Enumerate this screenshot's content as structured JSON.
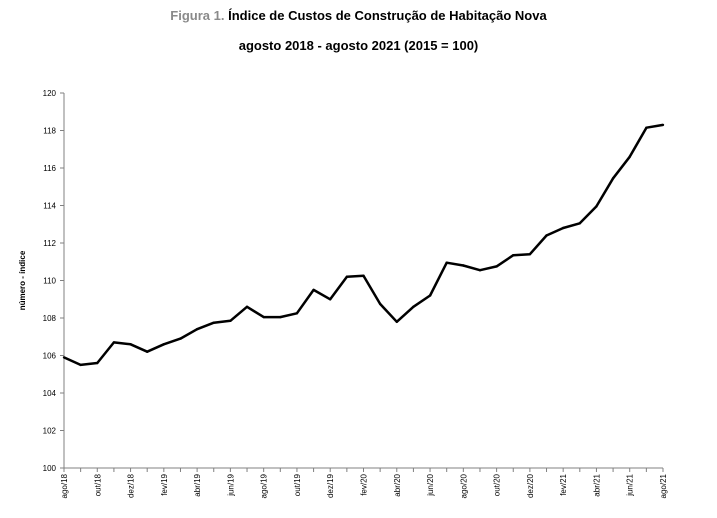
{
  "figure": {
    "label": "Figura 1.",
    "title": "Índice de Custos de Construção de Habitação Nova",
    "subtitle": "agosto 2018 - agosto 2021 (2015 = 100)"
  },
  "colors": {
    "line": "#000000",
    "label_gray": "#8a8a8a"
  },
  "chart_data": {
    "type": "line",
    "title": "Índice de Custos de Construção de Habitação Nova",
    "subtitle": "agosto 2018 - agosto 2021 (2015 = 100)",
    "xlabel": "",
    "ylabel": "número - índice",
    "ylim": [
      100,
      120
    ],
    "yticks": [
      100,
      102,
      104,
      106,
      108,
      110,
      112,
      114,
      116,
      118,
      120
    ],
    "grid": false,
    "legend": "none",
    "x": [
      "ago/18",
      "set/18",
      "out/18",
      "nov/18",
      "dez/18",
      "jan/19",
      "fev/19",
      "mar/19",
      "abr/19",
      "mai/19",
      "jun/19",
      "jul/19",
      "ago/19",
      "set/19",
      "out/19",
      "nov/19",
      "dez/19",
      "jan/20",
      "fev/20",
      "mar/20",
      "abr/20",
      "mai/20",
      "jun/20",
      "jul/20",
      "ago/20",
      "set/20",
      "out/20",
      "nov/20",
      "dez/20",
      "jan/21",
      "fev/21",
      "mar/21",
      "abr/21",
      "mai/21",
      "jun/21",
      "jul/21",
      "ago/21"
    ],
    "xtick_labels": [
      "ago/18",
      "out/18",
      "dez/18",
      "fev/19",
      "abr/19",
      "jun/19",
      "ago/19",
      "out/19",
      "dez/19",
      "fev/20",
      "abr/20",
      "jun/20",
      "ago/20",
      "out/20",
      "dez/20",
      "fev/21",
      "abr/21",
      "jun/21",
      "ago/21"
    ],
    "series": [
      {
        "values": [
          105.9,
          105.5,
          105.6,
          106.7,
          106.6,
          106.2,
          106.6,
          106.9,
          107.4,
          107.75,
          107.85,
          108.6,
          108.05,
          108.05,
          108.25,
          109.5,
          109.0,
          110.2,
          110.25,
          108.75,
          107.8,
          108.6,
          109.2,
          110.95,
          110.8,
          110.55,
          110.75,
          111.35,
          111.4,
          112.4,
          112.8,
          113.05,
          113.95,
          115.45,
          116.6,
          118.15,
          118.3
        ]
      }
    ]
  }
}
